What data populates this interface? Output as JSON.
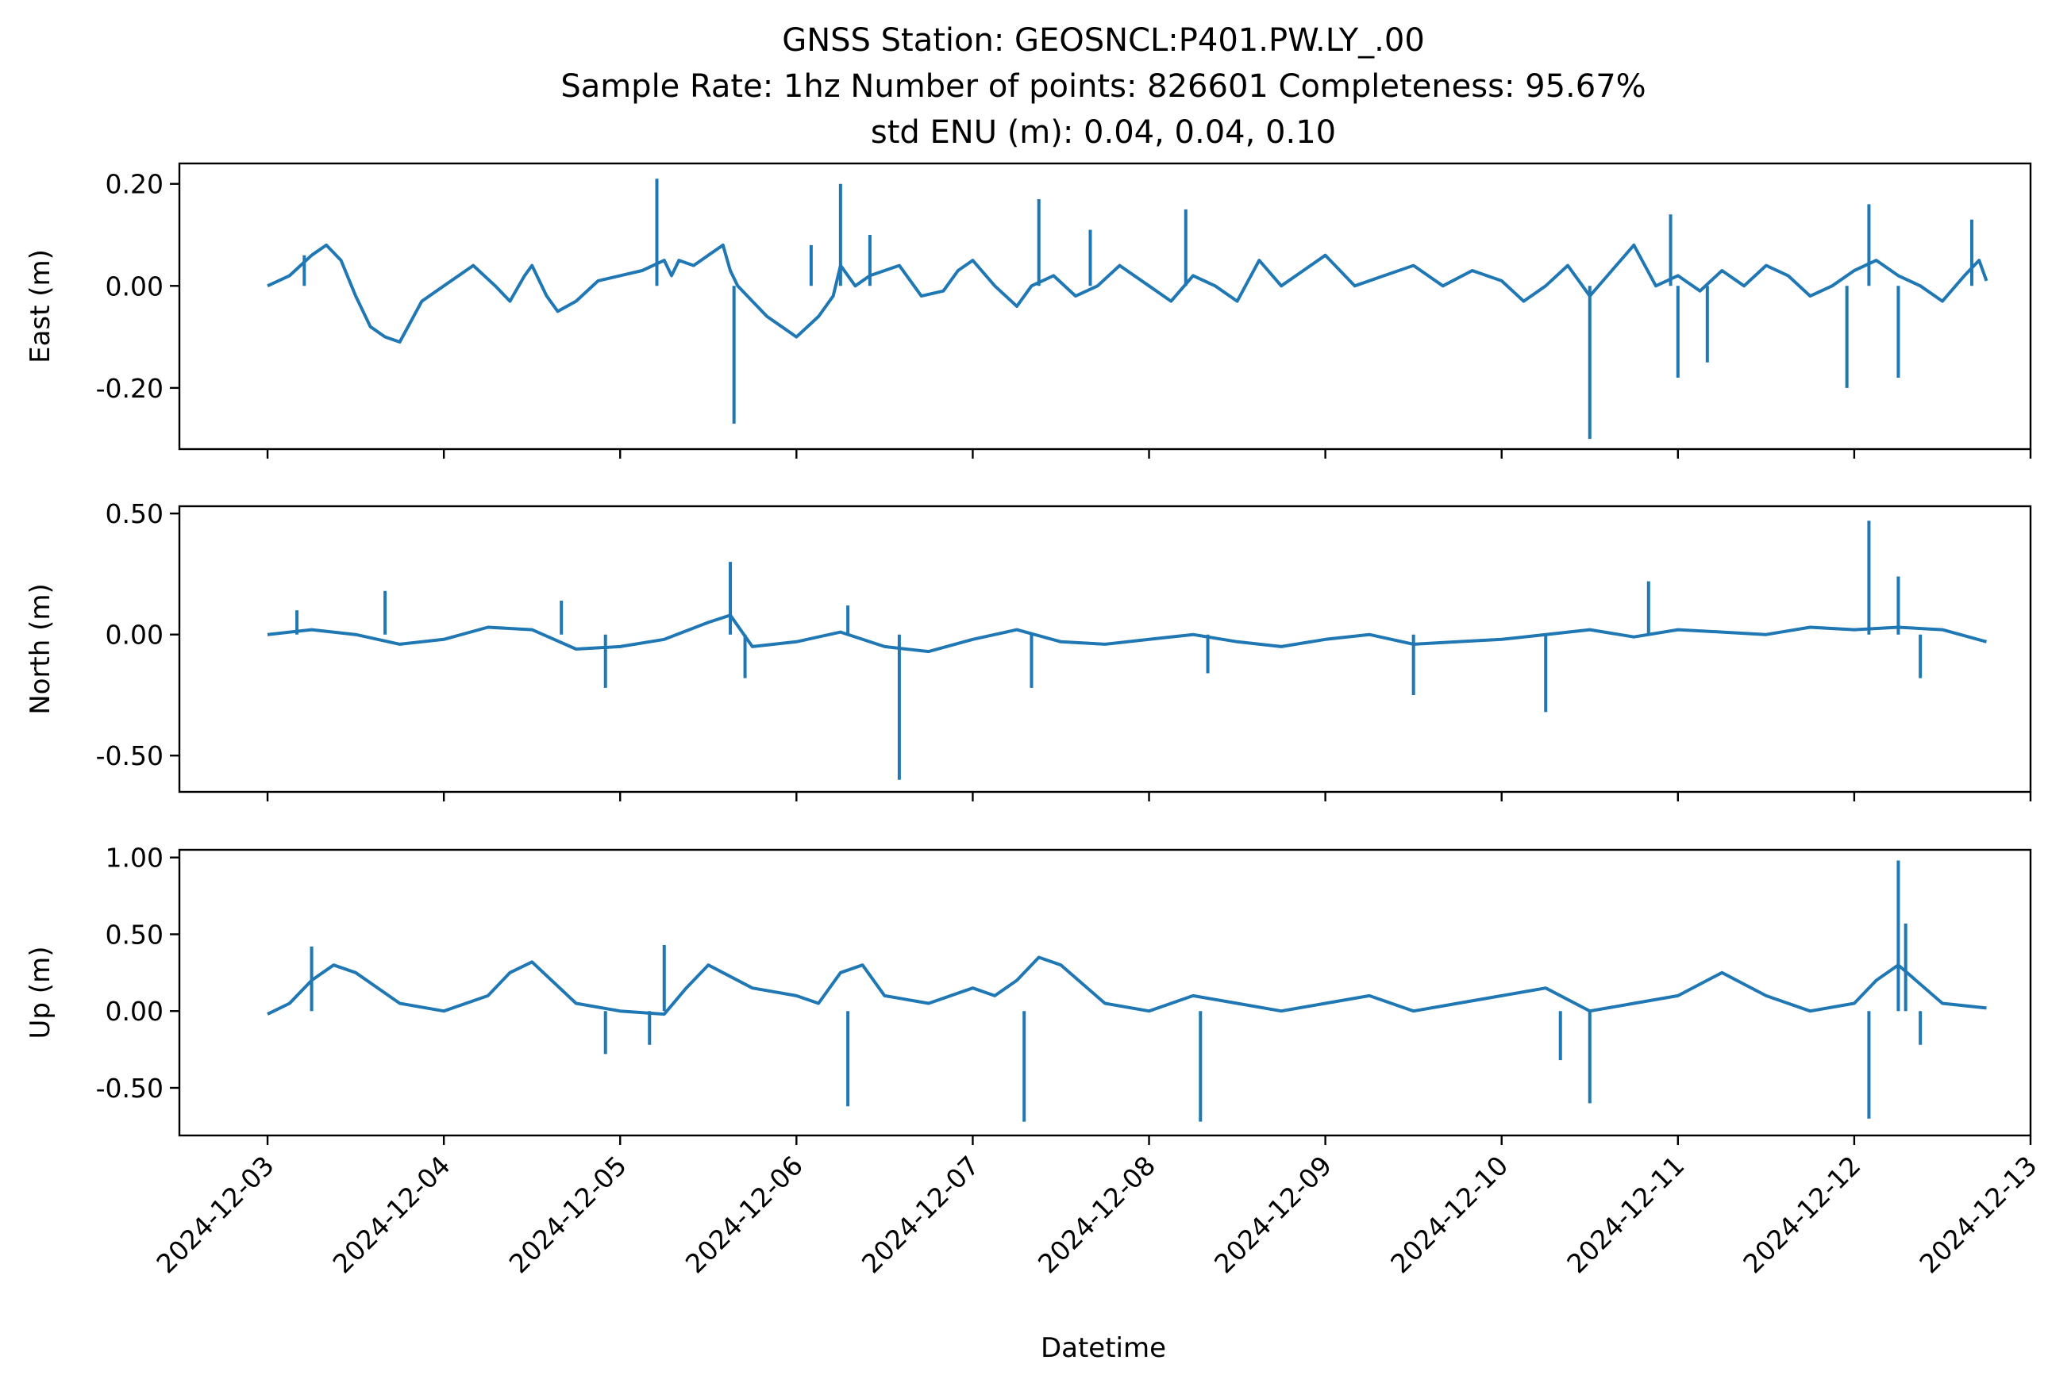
{
  "figure": {
    "title_lines": [
      "GNSS Station: GEOSNCL:P401.PW.LY_.00",
      "Sample Rate: 1hz   Number of points: 826601    Completeness:  95.67%",
      "std ENU (m):  0.04, 0.04, 0.10"
    ],
    "xlabel": "Datetime",
    "x_ticks": [
      "2024-12-03",
      "2024-12-04",
      "2024-12-05",
      "2024-12-06",
      "2024-12-07",
      "2024-12-08",
      "2024-12-09",
      "2024-12-10",
      "2024-12-11",
      "2024-12-12",
      "2024-12-13"
    ]
  },
  "chart_data": [
    {
      "type": "line",
      "ylabel": "East (m)",
      "ylim": [
        -0.32,
        0.24
      ],
      "yticks": [
        0.2,
        0.0,
        -0.2
      ],
      "ytick_labels": [
        "0.20",
        "0.00",
        "-0.20"
      ],
      "xlim": [
        "2024-12-02T12:00",
        "2024-12-13T00:00"
      ],
      "line_color": "#1f77b4",
      "series": [
        {
          "x": [
            "2024-12-03T00:00",
            "2024-12-03T03:00",
            "2024-12-03T06:00",
            "2024-12-03T08:00",
            "2024-12-03T10:00",
            "2024-12-03T12:00",
            "2024-12-03T14:00",
            "2024-12-03T16:00",
            "2024-12-03T18:00",
            "2024-12-03T21:00",
            "2024-12-04T00:00",
            "2024-12-04T04:00",
            "2024-12-04T07:00",
            "2024-12-04T09:00",
            "2024-12-04T11:00",
            "2024-12-04T12:00",
            "2024-12-04T14:00",
            "2024-12-04T15:30",
            "2024-12-04T18:00",
            "2024-12-04T21:00",
            "2024-12-05T00:00",
            "2024-12-05T03:00",
            "2024-12-05T06:00",
            "2024-12-05T07:00",
            "2024-12-05T08:00",
            "2024-12-05T10:00",
            "2024-12-05T12:00",
            "2024-12-05T14:00",
            "2024-12-05T15:00",
            "2024-12-05T16:00",
            "2024-12-05T18:00",
            "2024-12-05T20:00",
            "2024-12-05T22:00",
            "2024-12-06T00:00",
            "2024-12-06T03:00",
            "2024-12-06T05:00",
            "2024-12-06T06:00",
            "2024-12-06T08:00",
            "2024-12-06T10:00",
            "2024-12-06T14:00",
            "2024-12-06T17:00",
            "2024-12-06T20:00",
            "2024-12-06T22:00",
            "2024-12-07T00:00",
            "2024-12-07T03:00",
            "2024-12-07T06:00",
            "2024-12-07T08:00",
            "2024-12-07T11:00",
            "2024-12-07T14:00",
            "2024-12-07T17:00",
            "2024-12-07T20:00",
            "2024-12-08T00:00",
            "2024-12-08T03:00",
            "2024-12-08T06:00",
            "2024-12-08T09:00",
            "2024-12-08T12:00",
            "2024-12-08T15:00",
            "2024-12-08T18:00",
            "2024-12-08T21:00",
            "2024-12-09T00:00",
            "2024-12-09T04:00",
            "2024-12-09T08:00",
            "2024-12-09T12:00",
            "2024-12-09T16:00",
            "2024-12-09T20:00",
            "2024-12-10T00:00",
            "2024-12-10T03:00",
            "2024-12-10T06:00",
            "2024-12-10T09:00",
            "2024-12-10T12:00",
            "2024-12-10T15:00",
            "2024-12-10T18:00",
            "2024-12-10T21:00",
            "2024-12-11T00:00",
            "2024-12-11T03:00",
            "2024-12-11T06:00",
            "2024-12-11T09:00",
            "2024-12-11T12:00",
            "2024-12-11T15:00",
            "2024-12-11T18:00",
            "2024-12-11T21:00",
            "2024-12-12T00:00",
            "2024-12-12T03:00",
            "2024-12-12T06:00",
            "2024-12-12T09:00",
            "2024-12-12T12:00",
            "2024-12-12T15:00",
            "2024-12-12T17:00",
            "2024-12-12T18:00"
          ],
          "y": [
            0.0,
            0.02,
            0.06,
            0.08,
            0.05,
            -0.02,
            -0.08,
            -0.1,
            -0.11,
            -0.03,
            0.0,
            0.04,
            0.0,
            -0.03,
            0.02,
            0.04,
            -0.02,
            -0.05,
            -0.03,
            0.01,
            0.02,
            0.03,
            0.05,
            0.02,
            0.05,
            0.04,
            0.06,
            0.08,
            0.03,
            0.0,
            -0.03,
            -0.06,
            -0.08,
            -0.1,
            -0.06,
            -0.02,
            0.04,
            0.0,
            0.02,
            0.04,
            -0.02,
            -0.01,
            0.03,
            0.05,
            0.0,
            -0.04,
            0.0,
            0.02,
            -0.02,
            0.0,
            0.04,
            0.0,
            -0.03,
            0.02,
            0.0,
            -0.03,
            0.05,
            0.0,
            0.03,
            0.06,
            0.0,
            0.02,
            0.04,
            0.0,
            0.03,
            0.01,
            -0.03,
            0.0,
            0.04,
            -0.02,
            0.03,
            0.08,
            0.0,
            0.02,
            -0.01,
            0.03,
            0.0,
            0.04,
            0.02,
            -0.02,
            0.0,
            0.03,
            0.05,
            0.02,
            0.0,
            -0.03,
            0.02,
            0.05,
            0.01
          ]
        }
      ],
      "spikes": [
        {
          "x": "2024-12-03T05:00",
          "y": 0.06
        },
        {
          "x": "2024-12-05T05:00",
          "y": 0.21
        },
        {
          "x": "2024-12-05T15:30",
          "y": -0.27
        },
        {
          "x": "2024-12-06T02:00",
          "y": 0.08
        },
        {
          "x": "2024-12-06T06:00",
          "y": 0.2
        },
        {
          "x": "2024-12-06T10:00",
          "y": 0.1
        },
        {
          "x": "2024-12-07T09:00",
          "y": 0.17
        },
        {
          "x": "2024-12-07T16:00",
          "y": 0.11
        },
        {
          "x": "2024-12-08T05:00",
          "y": 0.15
        },
        {
          "x": "2024-12-10T12:00",
          "y": -0.3
        },
        {
          "x": "2024-12-10T23:00",
          "y": 0.14
        },
        {
          "x": "2024-12-11T00:00",
          "y": -0.18
        },
        {
          "x": "2024-12-11T04:00",
          "y": -0.15
        },
        {
          "x": "2024-12-11T23:00",
          "y": -0.2
        },
        {
          "x": "2024-12-12T02:00",
          "y": 0.16
        },
        {
          "x": "2024-12-12T06:00",
          "y": -0.18
        },
        {
          "x": "2024-12-12T16:00",
          "y": 0.13
        }
      ]
    },
    {
      "type": "line",
      "ylabel": "North (m)",
      "ylim": [
        -0.65,
        0.53
      ],
      "yticks": [
        0.5,
        0.0,
        -0.5
      ],
      "ytick_labels": [
        "0.50",
        "0.00",
        "-0.50"
      ],
      "xlim": [
        "2024-12-02T12:00",
        "2024-12-13T00:00"
      ],
      "line_color": "#1f77b4",
      "series": [
        {
          "x": [
            "2024-12-03T00:00",
            "2024-12-03T06:00",
            "2024-12-03T12:00",
            "2024-12-03T18:00",
            "2024-12-04T00:00",
            "2024-12-04T06:00",
            "2024-12-04T12:00",
            "2024-12-04T18:00",
            "2024-12-05T00:00",
            "2024-12-05T06:00",
            "2024-12-05T12:00",
            "2024-12-05T15:00",
            "2024-12-05T18:00",
            "2024-12-06T00:00",
            "2024-12-06T06:00",
            "2024-12-06T12:00",
            "2024-12-06T18:00",
            "2024-12-07T00:00",
            "2024-12-07T06:00",
            "2024-12-07T12:00",
            "2024-12-07T18:00",
            "2024-12-08T00:00",
            "2024-12-08T06:00",
            "2024-12-08T12:00",
            "2024-12-08T18:00",
            "2024-12-09T00:00",
            "2024-12-09T06:00",
            "2024-12-09T12:00",
            "2024-12-09T18:00",
            "2024-12-10T00:00",
            "2024-12-10T06:00",
            "2024-12-10T12:00",
            "2024-12-10T18:00",
            "2024-12-11T00:00",
            "2024-12-11T06:00",
            "2024-12-11T12:00",
            "2024-12-11T18:00",
            "2024-12-12T00:00",
            "2024-12-12T06:00",
            "2024-12-12T12:00",
            "2024-12-12T18:00"
          ],
          "y": [
            0.0,
            0.02,
            0.0,
            -0.04,
            -0.02,
            0.03,
            0.02,
            -0.06,
            -0.05,
            -0.02,
            0.05,
            0.08,
            -0.05,
            -0.03,
            0.01,
            -0.05,
            -0.07,
            -0.02,
            0.02,
            -0.03,
            -0.04,
            -0.02,
            0.0,
            -0.03,
            -0.05,
            -0.02,
            0.0,
            -0.04,
            -0.03,
            -0.02,
            0.0,
            0.02,
            -0.01,
            0.02,
            0.01,
            0.0,
            0.03,
            0.02,
            0.03,
            0.02,
            -0.03
          ]
        }
      ],
      "spikes": [
        {
          "x": "2024-12-03T04:00",
          "y": 0.1
        },
        {
          "x": "2024-12-03T16:00",
          "y": 0.18
        },
        {
          "x": "2024-12-04T16:00",
          "y": 0.14
        },
        {
          "x": "2024-12-04T22:00",
          "y": -0.22
        },
        {
          "x": "2024-12-05T15:00",
          "y": 0.3
        },
        {
          "x": "2024-12-05T17:00",
          "y": -0.18
        },
        {
          "x": "2024-12-06T07:00",
          "y": 0.12
        },
        {
          "x": "2024-12-06T14:00",
          "y": -0.6
        },
        {
          "x": "2024-12-07T08:00",
          "y": -0.22
        },
        {
          "x": "2024-12-08T08:00",
          "y": -0.16
        },
        {
          "x": "2024-12-09T12:00",
          "y": -0.25
        },
        {
          "x": "2024-12-10T06:00",
          "y": -0.32
        },
        {
          "x": "2024-12-10T20:00",
          "y": 0.22
        },
        {
          "x": "2024-12-12T02:00",
          "y": 0.47
        },
        {
          "x": "2024-12-12T06:00",
          "y": 0.24
        },
        {
          "x": "2024-12-12T09:00",
          "y": -0.18
        }
      ]
    },
    {
      "type": "line",
      "ylabel": "Up (m)",
      "ylim": [
        -0.81,
        1.05
      ],
      "yticks": [
        1.0,
        0.5,
        0.0,
        -0.5
      ],
      "ytick_labels": [
        "1.00",
        "0.50",
        "0.00",
        "-0.50"
      ],
      "xlim": [
        "2024-12-02T12:00",
        "2024-12-13T00:00"
      ],
      "line_color": "#1f77b4",
      "series": [
        {
          "x": [
            "2024-12-03T00:00",
            "2024-12-03T03:00",
            "2024-12-03T06:00",
            "2024-12-03T09:00",
            "2024-12-03T12:00",
            "2024-12-03T18:00",
            "2024-12-04T00:00",
            "2024-12-04T06:00",
            "2024-12-04T09:00",
            "2024-12-04T12:00",
            "2024-12-04T18:00",
            "2024-12-05T00:00",
            "2024-12-05T06:00",
            "2024-12-05T09:00",
            "2024-12-05T12:00",
            "2024-12-05T18:00",
            "2024-12-06T00:00",
            "2024-12-06T03:00",
            "2024-12-06T06:00",
            "2024-12-06T09:00",
            "2024-12-06T12:00",
            "2024-12-06T18:00",
            "2024-12-07T00:00",
            "2024-12-07T03:00",
            "2024-12-07T06:00",
            "2024-12-07T09:00",
            "2024-12-07T12:00",
            "2024-12-07T18:00",
            "2024-12-08T00:00",
            "2024-12-08T06:00",
            "2024-12-08T12:00",
            "2024-12-08T18:00",
            "2024-12-09T00:00",
            "2024-12-09T06:00",
            "2024-12-09T12:00",
            "2024-12-09T18:00",
            "2024-12-10T00:00",
            "2024-12-10T06:00",
            "2024-12-10T12:00",
            "2024-12-10T18:00",
            "2024-12-11T00:00",
            "2024-12-11T06:00",
            "2024-12-11T12:00",
            "2024-12-11T18:00",
            "2024-12-12T00:00",
            "2024-12-12T03:00",
            "2024-12-12T06:00",
            "2024-12-12T12:00",
            "2024-12-12T18:00"
          ],
          "y": [
            -0.02,
            0.05,
            0.2,
            0.3,
            0.25,
            0.05,
            0.0,
            0.1,
            0.25,
            0.32,
            0.05,
            0.0,
            -0.02,
            0.15,
            0.3,
            0.15,
            0.1,
            0.05,
            0.25,
            0.3,
            0.1,
            0.05,
            0.15,
            0.1,
            0.2,
            0.35,
            0.3,
            0.05,
            0.0,
            0.1,
            0.05,
            0.0,
            0.05,
            0.1,
            0.0,
            0.05,
            0.1,
            0.15,
            0.0,
            0.05,
            0.1,
            0.25,
            0.1,
            0.0,
            0.05,
            0.2,
            0.3,
            0.05,
            0.02
          ]
        }
      ],
      "spikes": [
        {
          "x": "2024-12-03T06:00",
          "y": 0.42
        },
        {
          "x": "2024-12-04T22:00",
          "y": -0.28
        },
        {
          "x": "2024-12-05T04:00",
          "y": -0.22
        },
        {
          "x": "2024-12-05T06:00",
          "y": 0.43
        },
        {
          "x": "2024-12-06T07:00",
          "y": -0.62
        },
        {
          "x": "2024-12-07T07:00",
          "y": -0.72
        },
        {
          "x": "2024-12-08T07:00",
          "y": -0.72
        },
        {
          "x": "2024-12-10T08:00",
          "y": -0.32
        },
        {
          "x": "2024-12-10T12:00",
          "y": -0.6
        },
        {
          "x": "2024-12-12T02:00",
          "y": -0.7
        },
        {
          "x": "2024-12-12T06:00",
          "y": 0.98
        },
        {
          "x": "2024-12-12T07:00",
          "y": 0.57
        },
        {
          "x": "2024-12-12T09:00",
          "y": -0.22
        }
      ]
    }
  ]
}
